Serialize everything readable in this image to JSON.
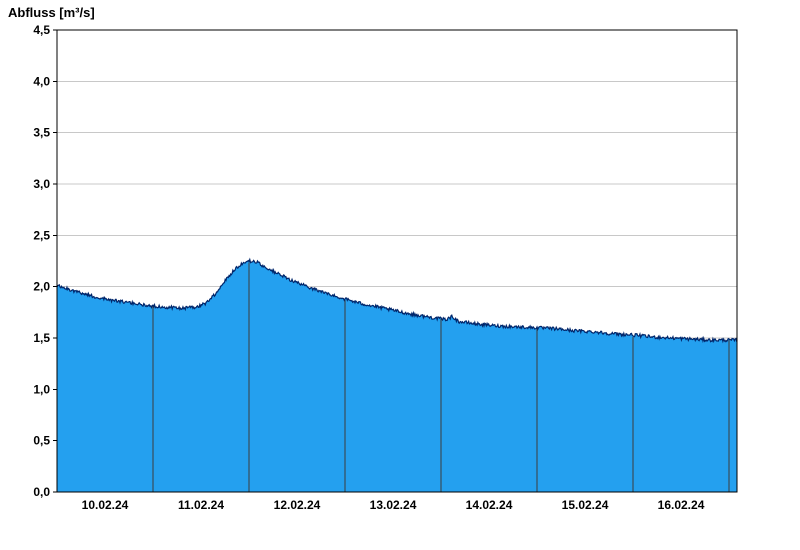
{
  "page": {
    "title": "Abfluss [m³/s]"
  },
  "chart_data": {
    "type": "area",
    "title": "Abfluss [m³/s]",
    "ylabel": "Abfluss [m³/s]",
    "xlabel": "",
    "unit": "m³/s",
    "ylim": [
      0,
      4.5
    ],
    "y_ticks": [
      {
        "v": 0.0,
        "label": "0,0"
      },
      {
        "v": 0.5,
        "label": "0,5"
      },
      {
        "v": 1.0,
        "label": "1,0"
      },
      {
        "v": 1.5,
        "label": "1,5"
      },
      {
        "v": 2.0,
        "label": "2,0"
      },
      {
        "v": 2.5,
        "label": "2,5"
      },
      {
        "v": 3.0,
        "label": "3,0"
      },
      {
        "v": 3.5,
        "label": "3,5"
      },
      {
        "v": 4.0,
        "label": "4,0"
      },
      {
        "v": 4.5,
        "label": "4,5"
      }
    ],
    "x_span_days": 7.083,
    "x_ticks": [
      {
        "label": "10.02.24",
        "t": 0.5
      },
      {
        "label": "11.02.24",
        "t": 1.5
      },
      {
        "label": "12.02.24",
        "t": 2.5
      },
      {
        "label": "13.02.24",
        "t": 3.5
      },
      {
        "label": "14.02.24",
        "t": 4.5
      },
      {
        "label": "15.02.24",
        "t": 5.5
      },
      {
        "label": "16.02.24",
        "t": 6.5
      }
    ],
    "day_separators": [
      1,
      2,
      3,
      4,
      5,
      6,
      7
    ],
    "grid": true,
    "legend": "none",
    "noise_amplitude": 0.016,
    "series": [
      {
        "name": "Abfluss",
        "unit": "m³/s",
        "points": [
          [
            0,
            2.01
          ],
          [
            0.1,
            1.98
          ],
          [
            0.25,
            1.94
          ],
          [
            0.4,
            1.9
          ],
          [
            0.55,
            1.87
          ],
          [
            0.7,
            1.85
          ],
          [
            0.85,
            1.83
          ],
          [
            1,
            1.81
          ],
          [
            1.15,
            1.8
          ],
          [
            1.3,
            1.79
          ],
          [
            1.45,
            1.8
          ],
          [
            1.55,
            1.84
          ],
          [
            1.65,
            1.93
          ],
          [
            1.75,
            2.06
          ],
          [
            1.85,
            2.17
          ],
          [
            1.92,
            2.22
          ],
          [
            2,
            2.25
          ],
          [
            2.08,
            2.24
          ],
          [
            2.15,
            2.2
          ],
          [
            2.25,
            2.15
          ],
          [
            2.4,
            2.08
          ],
          [
            2.55,
            2.02
          ],
          [
            2.7,
            1.97
          ],
          [
            2.85,
            1.92
          ],
          [
            3,
            1.88
          ],
          [
            3.15,
            1.84
          ],
          [
            3.3,
            1.81
          ],
          [
            3.5,
            1.77
          ],
          [
            3.7,
            1.73
          ],
          [
            3.9,
            1.7
          ],
          [
            4.05,
            1.68
          ],
          [
            4.12,
            1.71
          ],
          [
            4.18,
            1.66
          ],
          [
            4.35,
            1.64
          ],
          [
            4.55,
            1.62
          ],
          [
            4.75,
            1.61
          ],
          [
            5,
            1.6
          ],
          [
            5.2,
            1.59
          ],
          [
            5.4,
            1.57
          ],
          [
            5.6,
            1.56
          ],
          [
            5.8,
            1.54
          ],
          [
            6,
            1.53
          ],
          [
            6.2,
            1.51
          ],
          [
            6.4,
            1.5
          ],
          [
            6.6,
            1.49
          ],
          [
            6.8,
            1.48
          ],
          [
            7.083,
            1.48
          ]
        ]
      }
    ],
    "colors": {
      "fill": "#24a0ef",
      "line": "#00266b",
      "grid": "#c8c8c8",
      "separator": "#3c3c3c",
      "axis": "#000000",
      "background": "#ffffff"
    }
  }
}
